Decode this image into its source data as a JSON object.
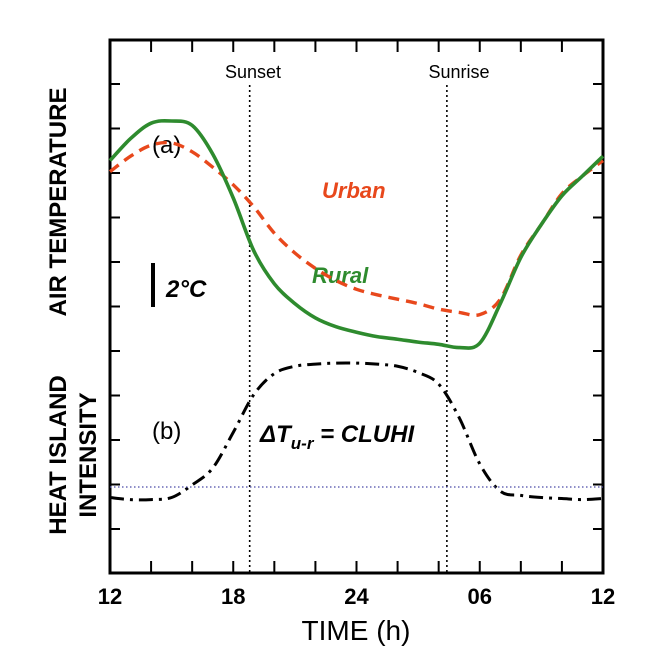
{
  "chart_data": {
    "type": "line",
    "xlabel": "TIME (h)",
    "ylabel_top": "AIR TEMPERATURE",
    "ylabel_bottom_line1": "HEAT ISLAND",
    "ylabel_bottom_line2": "INTENSITY",
    "x_tick_labels": [
      "12",
      "18",
      "24",
      "06",
      "12"
    ],
    "grid": false,
    "annotations": {
      "sunset": "Sunset",
      "sunrise": "Sunrise",
      "panel_a": "(a)",
      "panel_b": "(b)",
      "scale_bar": "2°C",
      "eq_delta": "ΔT",
      "eq_sub": "u-r",
      "eq_rest": " = CLUHI"
    },
    "vertical_markers_hours": [
      18.8,
      28.4
    ],
    "scale_bar_degC": 2,
    "series": [
      {
        "name": "Urban",
        "panel": "a",
        "color": "#e8481c",
        "style": "dashed",
        "x": [
          12,
          13,
          14,
          15,
          16,
          17,
          18,
          19,
          20,
          21,
          22,
          23,
          24,
          25,
          26,
          27,
          28,
          29,
          30,
          31,
          32,
          33,
          34,
          35,
          36
        ],
        "y": [
          7.2,
          7.9,
          8.4,
          8.5,
          8.1,
          7.4,
          6.6,
          5.6,
          4.4,
          3.5,
          2.8,
          2.25,
          1.85,
          1.6,
          1.4,
          1.2,
          0.95,
          0.8,
          0.7,
          1.4,
          3.4,
          4.8,
          6.2,
          7.0,
          7.7
        ]
      },
      {
        "name": "Rural",
        "panel": "a",
        "color": "#2e8b2e",
        "style": "solid",
        "x": [
          12,
          13,
          14,
          15,
          16,
          17,
          18,
          19,
          20,
          21,
          22,
          23,
          24,
          25,
          26,
          27,
          28,
          29,
          30,
          31,
          32,
          33,
          34,
          35,
          36
        ],
        "y": [
          7.7,
          8.7,
          9.4,
          9.5,
          9.3,
          8.0,
          6.0,
          3.6,
          2.1,
          1.2,
          0.55,
          0.15,
          -0.1,
          -0.3,
          -0.42,
          -0.55,
          -0.65,
          -0.8,
          -0.6,
          1.2,
          3.3,
          4.8,
          6.1,
          7.0,
          7.9
        ]
      },
      {
        "name": "ΔTu-r = CLUHI",
        "panel": "b",
        "color": "#000000",
        "style": "dashdot",
        "x": [
          12,
          13,
          14,
          15,
          16,
          17,
          18,
          19,
          20,
          21,
          22,
          23,
          24,
          25,
          26,
          27,
          28,
          29,
          30,
          31,
          32,
          33,
          34,
          35,
          36
        ],
        "y": [
          -0.5,
          -0.6,
          -0.6,
          -0.5,
          0.1,
          0.9,
          2.6,
          4.4,
          5.4,
          5.75,
          5.85,
          5.9,
          5.9,
          5.85,
          5.75,
          5.45,
          4.9,
          3.3,
          1.1,
          -0.2,
          -0.4,
          -0.5,
          -0.55,
          -0.6,
          -0.55
        ]
      },
      {
        "name": "zero reference",
        "panel": "b",
        "color": "#4a4aa8",
        "style": "dotted",
        "x": [
          12,
          36
        ],
        "y": [
          0,
          0
        ]
      }
    ]
  }
}
